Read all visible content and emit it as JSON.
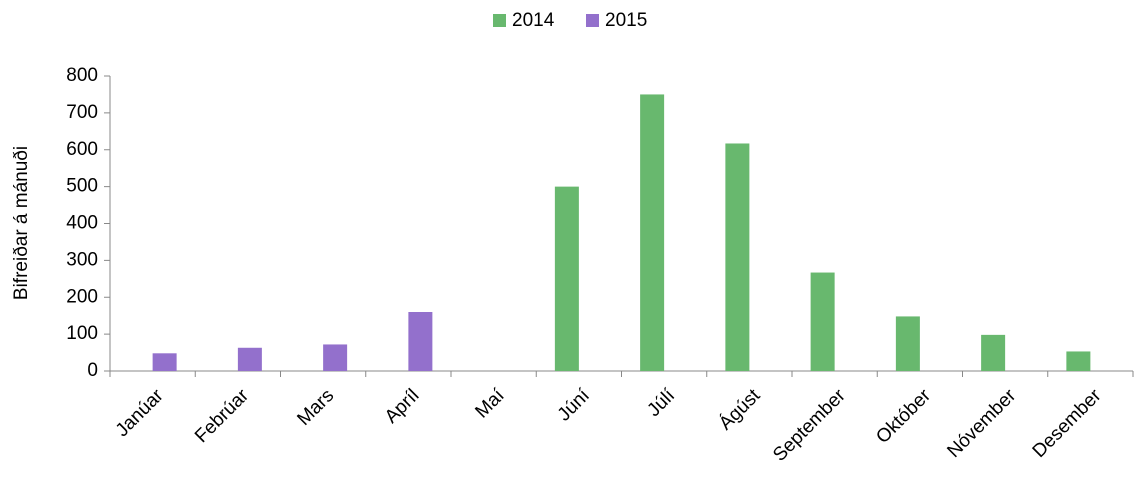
{
  "chart_data": {
    "type": "bar",
    "y_label": "Bifreiðar á mánuði",
    "categories": [
      "Janúar",
      "Febrúar",
      "Mars",
      "Apríl",
      "Maí",
      "Júní",
      "Júlí",
      "Ágúst",
      "September",
      "Október",
      "Nóvember",
      "Desember"
    ],
    "series": [
      {
        "name": "2014",
        "color": "#68b86e",
        "values": [
          null,
          null,
          null,
          null,
          null,
          500,
          750,
          617,
          267,
          148,
          98,
          53
        ]
      },
      {
        "name": "2015",
        "color": "#9370cc",
        "values": [
          48,
          63,
          72,
          160,
          null,
          null,
          null,
          null,
          null,
          null,
          null,
          null
        ]
      }
    ],
    "ylim": [
      0,
      800
    ],
    "yticks": [
      0,
      100,
      200,
      300,
      400,
      500,
      600,
      700,
      800
    ],
    "grid": false,
    "legend": "top"
  }
}
